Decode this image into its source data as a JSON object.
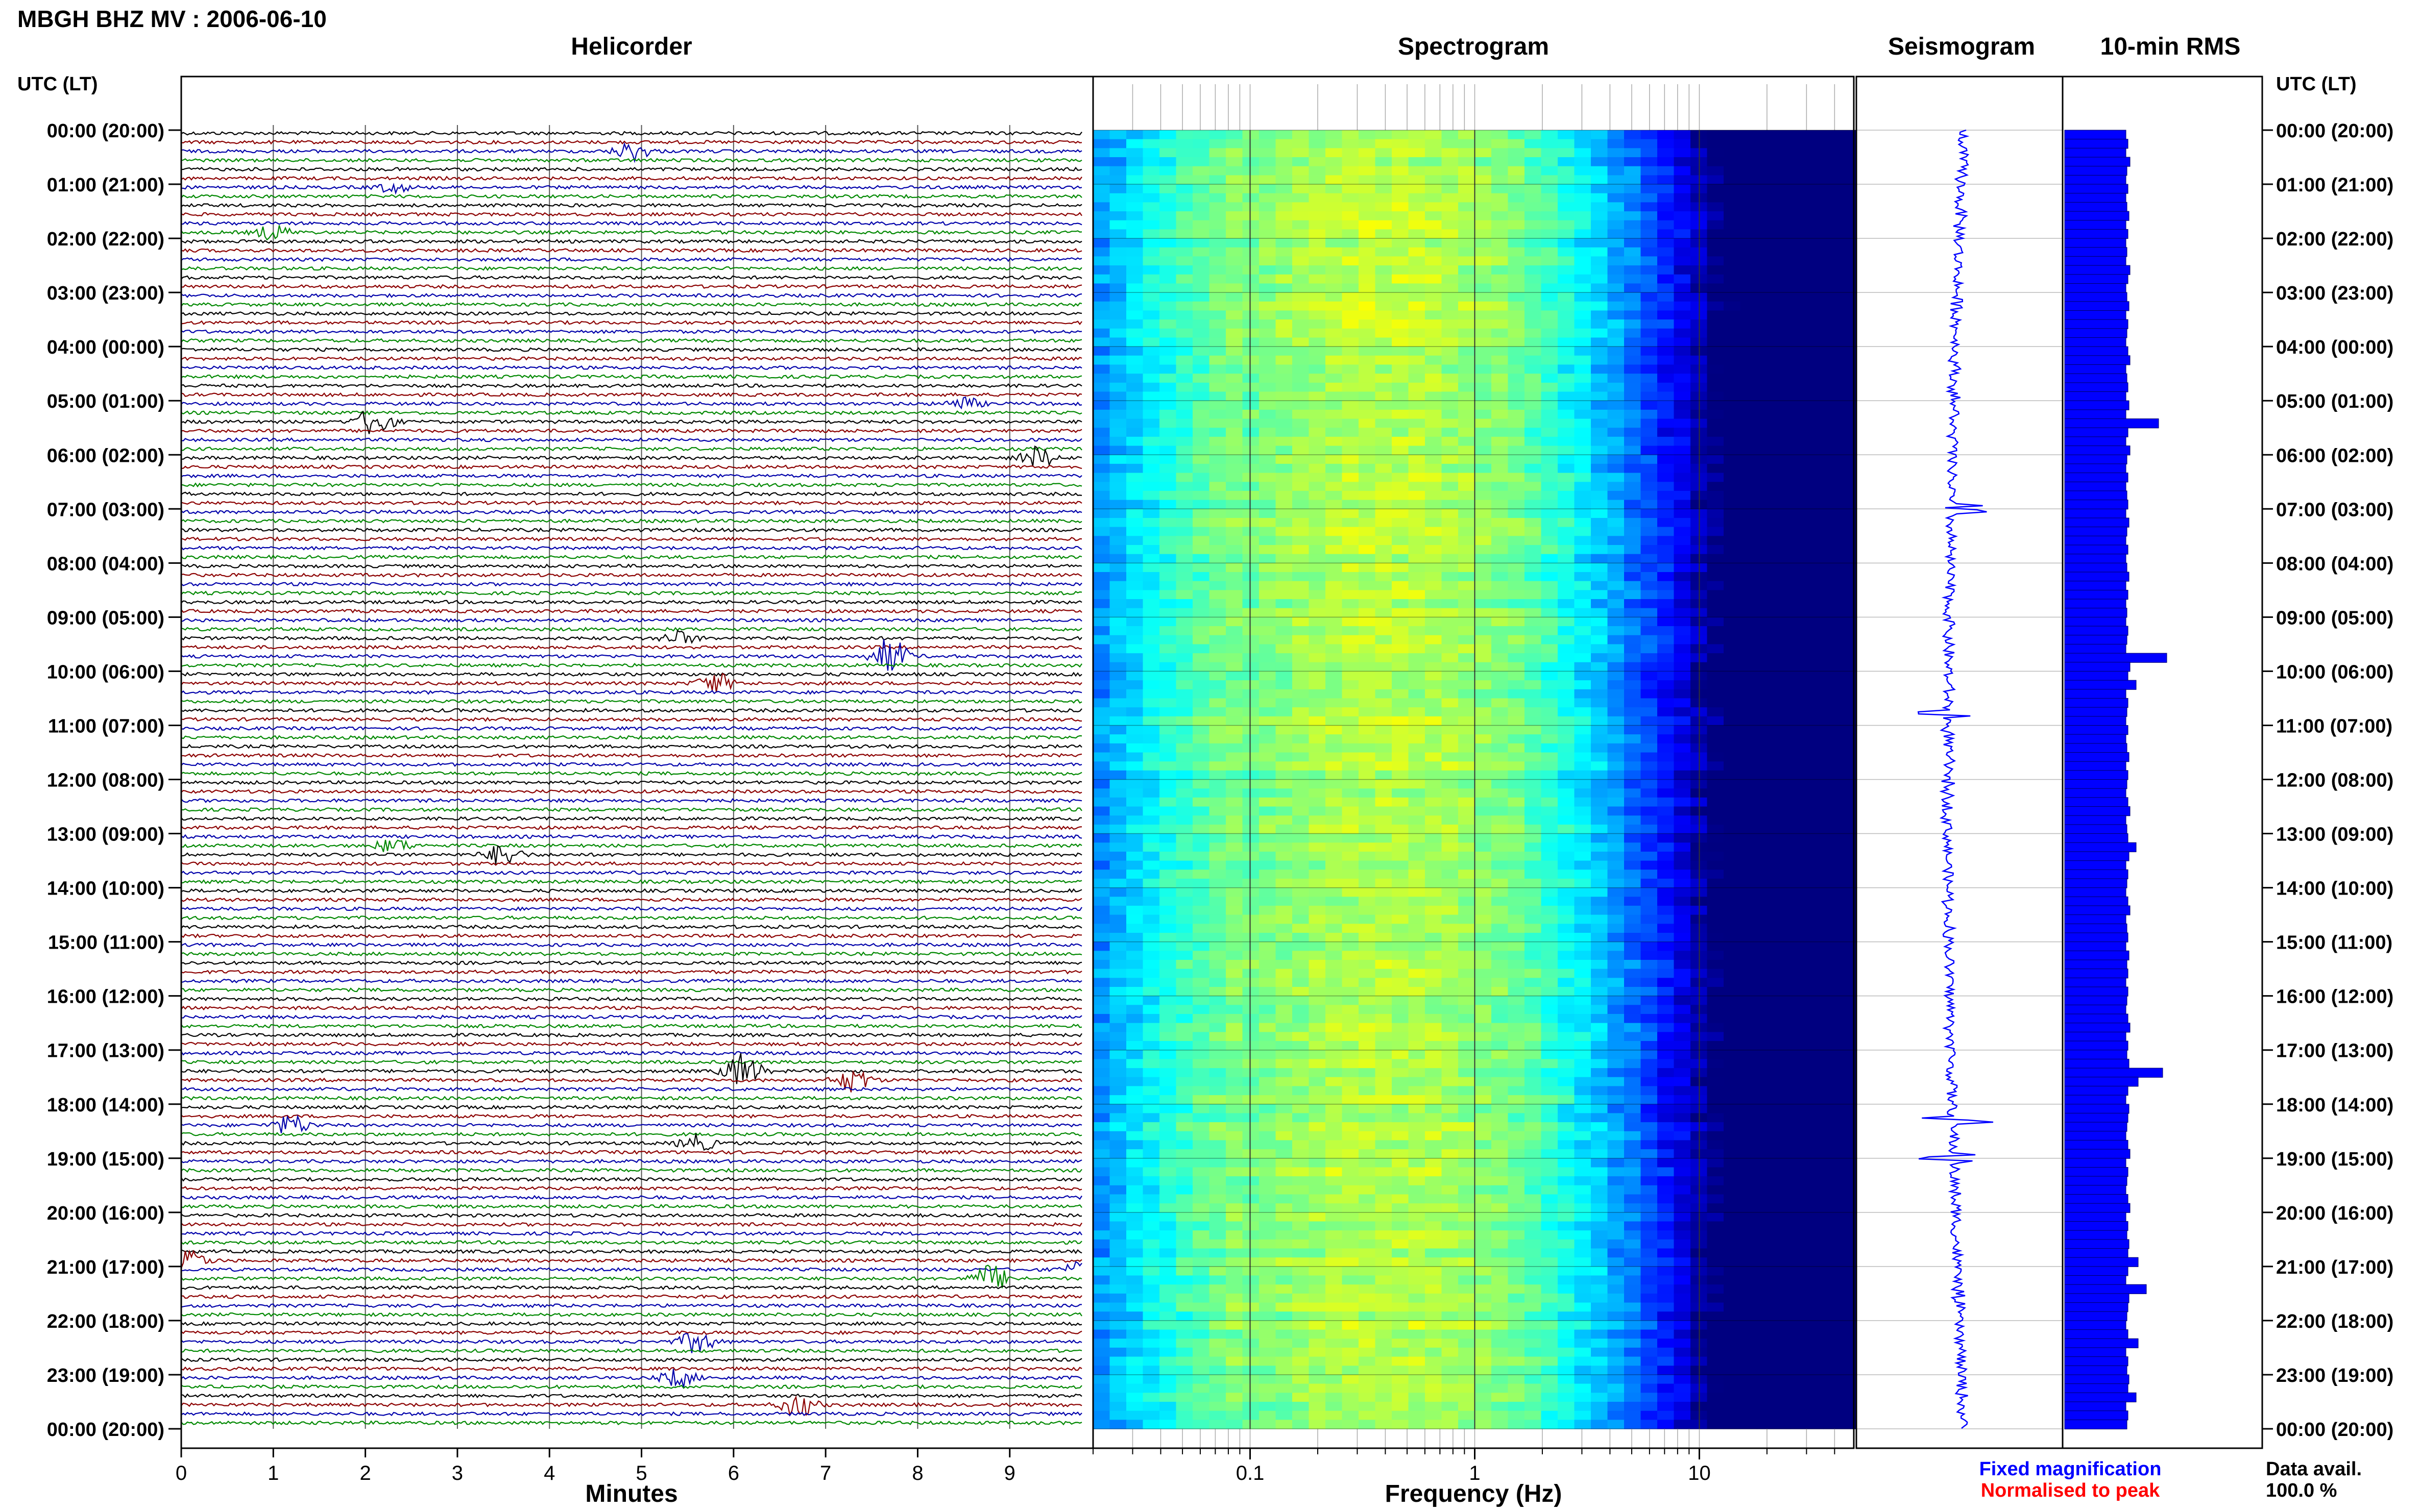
{
  "header": {
    "station_title": "MBGH BHZ MV : 2006-06-10"
  },
  "panels": {
    "helicorder_title": "Helicorder",
    "spectrogram_title": "Spectrogram",
    "seismogram_title": "Seismogram",
    "rms_title": "10-min RMS"
  },
  "axes": {
    "left_time_header": "UTC (LT)",
    "right_time_header": "UTC (LT)",
    "helicorder_xlabel": "Minutes",
    "spectrogram_xlabel": "Frequency (Hz)"
  },
  "footer": {
    "fixed_magnification": "Fixed magnification",
    "normalised_to_peak": "Normalised to peak",
    "data_avail_label": "Data avail.",
    "data_avail_value": "100.0 %"
  },
  "colors": {
    "trace_cycle": [
      "#000000",
      "#8b0000",
      "#0000aa",
      "#008800"
    ],
    "rms_bar": "#0000ff",
    "seismogram_trace": "#0000ff",
    "fixed_magnification": "#0000ff",
    "normalised_to_peak": "#ff0000",
    "grid": "#888888"
  },
  "chart_data": [
    {
      "type": "line",
      "name": "helicorder",
      "title": "Helicorder",
      "xlabel": "Minutes",
      "xticks": [
        "0",
        "1",
        "2",
        "3",
        "4",
        "5",
        "6",
        "7",
        "8",
        "9"
      ],
      "xlim": [
        0,
        10
      ],
      "lines_per_hour": 6,
      "hours": 24,
      "ytick_labels": [
        "00:00 (20:00)",
        "01:00 (21:00)",
        "02:00 (22:00)",
        "03:00 (23:00)",
        "04:00 (00:00)",
        "05:00 (01:00)",
        "06:00 (02:00)",
        "07:00 (03:00)",
        "08:00 (04:00)",
        "09:00 (05:00)",
        "10:00 (06:00)",
        "11:00 (07:00)",
        "12:00 (08:00)",
        "13:00 (09:00)",
        "14:00 (10:00)",
        "15:00 (11:00)",
        "16:00 (12:00)",
        "17:00 (13:00)",
        "18:00 (14:00)",
        "19:00 (15:00)",
        "20:00 (16:00)",
        "21:00 (17:00)",
        "22:00 (18:00)",
        "23:00 (19:00)",
        "00:00 (20:00)"
      ],
      "events": [
        {
          "line": 2,
          "minute": 4.9,
          "amp": 2.0
        },
        {
          "line": 6,
          "minute": 2.3,
          "amp": 1.0
        },
        {
          "line": 11,
          "minute": 1.0,
          "amp": 1.6
        },
        {
          "line": 30,
          "minute": 8.5,
          "amp": 1.3
        },
        {
          "line": 32,
          "minute": 2.1,
          "amp": 3.2
        },
        {
          "line": 36,
          "minute": 9.3,
          "amp": 2.4
        },
        {
          "line": 56,
          "minute": 5.4,
          "amp": 1.5
        },
        {
          "line": 58,
          "minute": 7.7,
          "amp": 4.0
        },
        {
          "line": 61,
          "minute": 5.8,
          "amp": 2.2
        },
        {
          "line": 79,
          "minute": 2.3,
          "amp": 1.5
        },
        {
          "line": 80,
          "minute": 3.5,
          "amp": 2.4
        },
        {
          "line": 104,
          "minute": 6.1,
          "amp": 4.0
        },
        {
          "line": 105,
          "minute": 7.3,
          "amp": 2.6
        },
        {
          "line": 110,
          "minute": 1.2,
          "amp": 2.2
        },
        {
          "line": 112,
          "minute": 5.6,
          "amp": 1.8
        },
        {
          "line": 125,
          "minute": 0.1,
          "amp": 2.0
        },
        {
          "line": 126,
          "minute": 9.8,
          "amp": 2.0
        },
        {
          "line": 127,
          "minute": 8.8,
          "amp": 3.0
        },
        {
          "line": 134,
          "minute": 5.6,
          "amp": 2.4
        },
        {
          "line": 138,
          "minute": 5.4,
          "amp": 2.0
        },
        {
          "line": 141,
          "minute": 6.7,
          "amp": 2.6
        }
      ]
    },
    {
      "type": "heatmap",
      "name": "spectrogram",
      "title": "Spectrogram",
      "xlabel": "Frequency (Hz)",
      "xscale": "log",
      "xlim": [
        0.02,
        50
      ],
      "xtick_labels": [
        "0.1",
        "1",
        "10"
      ]
    },
    {
      "type": "line",
      "name": "seismogram",
      "title": "Seismogram",
      "spikes_hours": [
        7.0,
        10.8,
        18.3,
        19.0
      ]
    },
    {
      "type": "bar",
      "name": "rms",
      "title": "10-min RMS",
      "orientation": "horizontal",
      "values": [
        0.6,
        0.62,
        0.6,
        0.64,
        0.61,
        0.6,
        0.62,
        0.6,
        0.61,
        0.63,
        0.6,
        0.62,
        0.6,
        0.61,
        0.6,
        0.64,
        0.62,
        0.6,
        0.61,
        0.63,
        0.6,
        0.62,
        0.61,
        0.6,
        0.62,
        0.64,
        0.6,
        0.61,
        0.62,
        0.6,
        0.63,
        0.6,
        0.92,
        0.62,
        0.6,
        0.64,
        0.61,
        0.6,
        0.62,
        0.6,
        0.61,
        0.62,
        0.6,
        0.63,
        0.61,
        0.6,
        0.62,
        0.6,
        0.61,
        0.63,
        0.6,
        0.62,
        0.6,
        0.61,
        0.6,
        0.62,
        0.61,
        0.6,
        1.0,
        0.64,
        0.62,
        0.7,
        0.6,
        0.62,
        0.61,
        0.6,
        0.62,
        0.6,
        0.61,
        0.63,
        0.6,
        0.62,
        0.61,
        0.6,
        0.62,
        0.64,
        0.6,
        0.61,
        0.62,
        0.7,
        0.63,
        0.6,
        0.62,
        0.61,
        0.6,
        0.62,
        0.64,
        0.6,
        0.61,
        0.62,
        0.6,
        0.63,
        0.61,
        0.62,
        0.6,
        0.62,
        0.61,
        0.6,
        0.62,
        0.64,
        0.6,
        0.62,
        0.61,
        0.63,
        0.96,
        0.72,
        0.62,
        0.6,
        0.63,
        0.62,
        0.61,
        0.6,
        0.62,
        0.64,
        0.6,
        0.62,
        0.61,
        0.6,
        0.62,
        0.64,
        0.6,
        0.62,
        0.61,
        0.63,
        0.62,
        0.72,
        0.62,
        0.6,
        0.8,
        0.63,
        0.62,
        0.61,
        0.6,
        0.62,
        0.72,
        0.6,
        0.62,
        0.61,
        0.63,
        0.62,
        0.7,
        0.6,
        0.62,
        0.61
      ]
    }
  ]
}
